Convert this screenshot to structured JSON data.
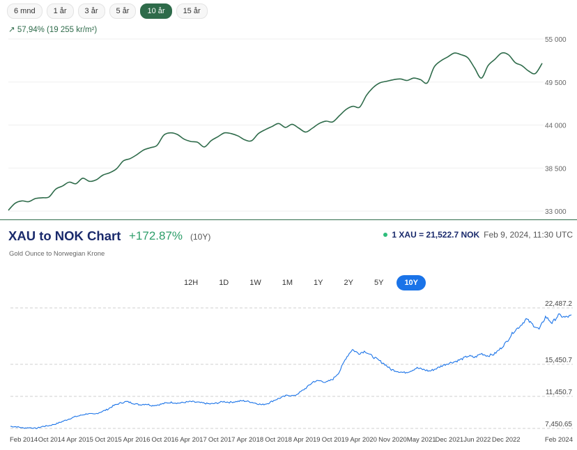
{
  "top_panel": {
    "ranges": [
      "6 mnd",
      "1 år",
      "3 år",
      "5 år",
      "10 år",
      "15 år"
    ],
    "active_range": "10 år",
    "change_arrow": "↗",
    "change_text": "57,94% (19 255 kr/m²)",
    "line_color": "#2e6b4a"
  },
  "bottom_panel": {
    "title": "XAU to NOK Chart",
    "change_pct": "+172.87%",
    "change_period": "(10Y)",
    "subtitle": "Gold Ounce to Norwegian Krone",
    "rate_text": "1 XAU = 21,522.7 NOK",
    "rate_time": "Feb 9, 2024, 11:30 UTC",
    "periods": [
      "12H",
      "1D",
      "1W",
      "1M",
      "1Y",
      "2Y",
      "5Y",
      "10Y"
    ],
    "active_period": "10Y",
    "line_color": "#1a73e8"
  },
  "chart_data": [
    {
      "type": "line",
      "title": "",
      "xlabel": "",
      "ylabel": "",
      "ylim": [
        33000,
        55000
      ],
      "yticks": [
        33000,
        38500,
        44000,
        49500,
        55000
      ],
      "ytick_labels": [
        "33 000",
        "38 500",
        "44 000",
        "49 500",
        "55 000"
      ],
      "grid": true,
      "series": [
        {
          "values": [
            33100,
            34000,
            34300,
            34200,
            34600,
            34700,
            34800,
            35800,
            36200,
            36700,
            36500,
            37200,
            36800,
            37000,
            37600,
            37900,
            38400,
            39400,
            39700,
            40200,
            40800,
            41100,
            41400,
            42700,
            43000,
            42800,
            42200,
            41900,
            41800,
            41200,
            42000,
            42500,
            43000,
            42900,
            42600,
            42100,
            42000,
            42900,
            43400,
            43800,
            44200,
            43700,
            44100,
            43600,
            43100,
            43600,
            44200,
            44500,
            44400,
            45200,
            46000,
            46400,
            46300,
            47800,
            48800,
            49400,
            49600,
            49800,
            49900,
            49700,
            50000,
            49800,
            49400,
            51400,
            52200,
            52700,
            53200,
            53000,
            52600,
            51300,
            50000,
            51600,
            52400,
            53200,
            53000,
            52000,
            51600,
            50900,
            50600,
            51900
          ]
        }
      ]
    },
    {
      "type": "line",
      "title": "",
      "xlabel": "",
      "ylabel": "",
      "ylim": [
        7450.65,
        22487.2
      ],
      "yticks": [
        7450.65,
        11450.7,
        15450.7,
        22487.2
      ],
      "ytick_labels": [
        "7,450.65",
        "11,450.7",
        "15,450.7",
        "22,487.2"
      ],
      "grid": true,
      "x_labels": [
        "Feb 2014",
        "Oct 2014",
        "Apr 2015",
        "Oct 2015",
        "Apr 2016",
        "Oct 2016",
        "Apr 2017",
        "Oct 2017",
        "Apr 2018",
        "Oct 2018",
        "Apr 2019",
        "Oct 2019",
        "Apr 2020",
        "Nov 2020",
        "May 2021",
        "Dec 2021",
        "Jun 2022",
        "Dec 2022",
        "Feb 2024"
      ],
      "series": [
        {
          "values": [
            7700,
            7650,
            7500,
            7550,
            7450,
            7700,
            7800,
            8000,
            8300,
            8600,
            8900,
            9100,
            9300,
            9200,
            9500,
            9800,
            10300,
            10600,
            10800,
            10600,
            10400,
            10500,
            10300,
            10400,
            10600,
            10700,
            10600,
            10700,
            10800,
            10700,
            10600,
            10500,
            10600,
            10800,
            10700,
            10800,
            10900,
            10800,
            10600,
            10400,
            10600,
            11000,
            11300,
            11600,
            11500,
            12000,
            12600,
            13300,
            13400,
            13200,
            13600,
            14500,
            16200,
            17300,
            16800,
            17100,
            16500,
            16000,
            15500,
            14800,
            14600,
            14400,
            14600,
            15000,
            14800,
            14600,
            14900,
            15300,
            15600,
            15800,
            16100,
            16500,
            16300,
            16800,
            16500,
            16700,
            17400,
            18300,
            19500,
            20200,
            21100,
            20400,
            19800,
            21400,
            20600,
            21600,
            21300,
            21500
          ]
        }
      ]
    }
  ]
}
